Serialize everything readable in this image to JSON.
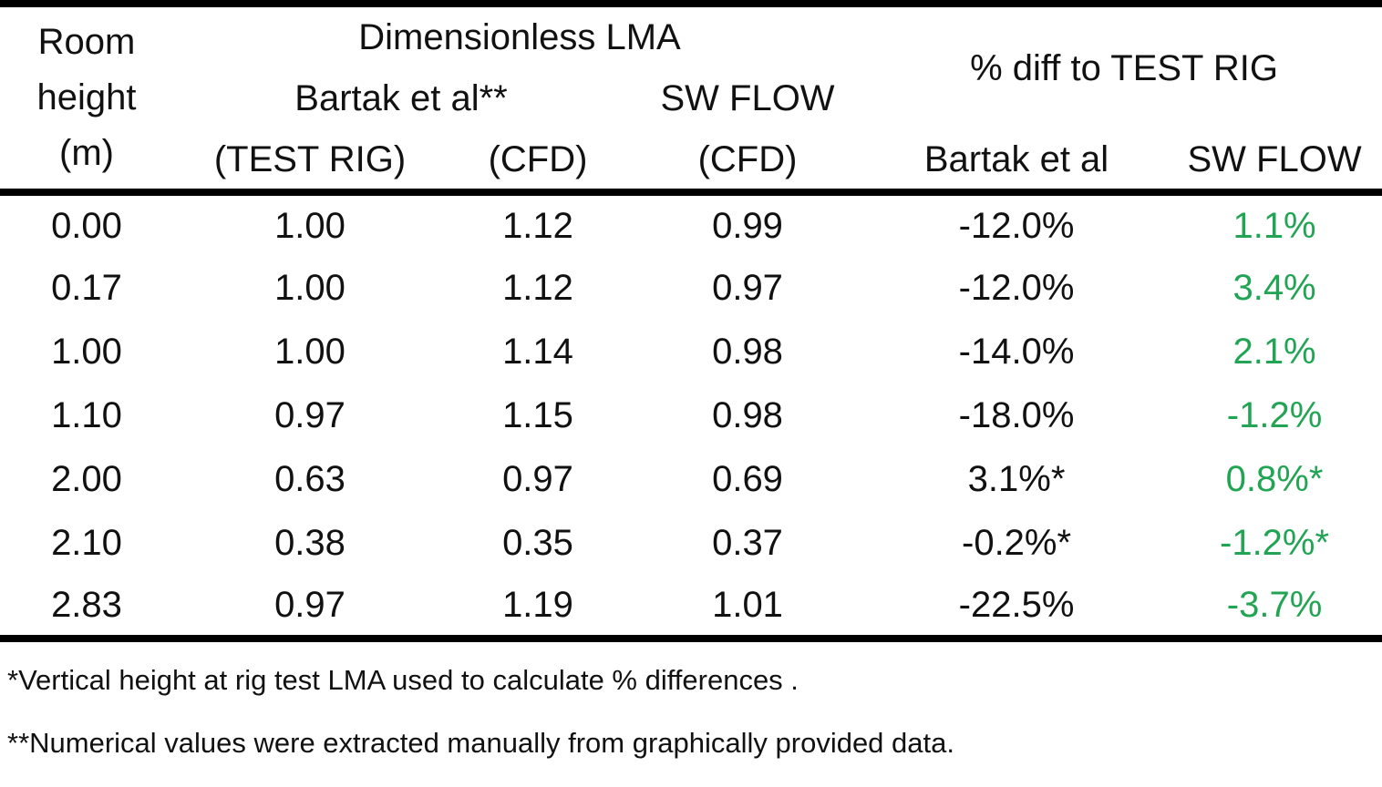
{
  "chart_data": {
    "type": "table",
    "title": "Dimensionless LMA comparison table",
    "header": {
      "col1_lines": [
        "Room",
        "height",
        "(m)"
      ],
      "group_lma": "Dimensionless LMA",
      "group_diff": "% diff to TEST RIG",
      "sub_bartak": "Bartak et al**",
      "sub_swflow": "SW FLOW",
      "sub_row3": [
        "(TEST RIG)",
        "(CFD)",
        "(CFD)",
        "Bartak et al",
        "SW FLOW"
      ]
    },
    "columns": [
      "Room height (m)",
      "Bartak et al** (TEST RIG)",
      "Bartak et al** (CFD)",
      "SW FLOW (CFD)",
      "% diff to TEST RIG - Bartak et al",
      "% diff to TEST RIG - SW FLOW"
    ],
    "rows": [
      [
        "0.00",
        "1.00",
        "1.12",
        "0.99",
        "-12.0%",
        "1.1%"
      ],
      [
        "0.17",
        "1.00",
        "1.12",
        "0.97",
        "-12.0%",
        "3.4%"
      ],
      [
        "1.00",
        "1.00",
        "1.14",
        "0.98",
        "-14.0%",
        "2.1%"
      ],
      [
        "1.10",
        "0.97",
        "1.15",
        "0.98",
        "-18.0%",
        "-1.2%"
      ],
      [
        "2.00",
        "0.63",
        "0.97",
        "0.69",
        "3.1%*",
        "0.8%*"
      ],
      [
        "2.10",
        "0.38",
        "0.35",
        "0.37",
        "-0.2%*",
        "-1.2%*"
      ],
      [
        "2.83",
        "0.97",
        "1.19",
        "1.01",
        "-22.5%",
        "-3.7%"
      ]
    ],
    "footnotes": [
      "*Vertical height at rig test LMA used to calculate % differences .",
      "**Numerical values were extracted manually from graphically provided data."
    ]
  },
  "colors": {
    "percent_green": "#21a453",
    "text": "#111111",
    "rule": "#000000"
  }
}
